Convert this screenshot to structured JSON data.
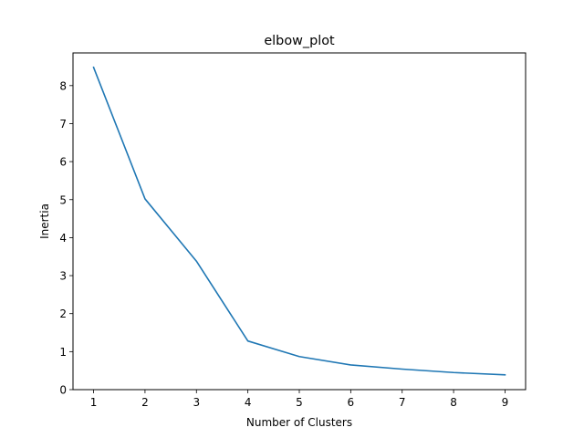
{
  "chart_data": {
    "type": "line",
    "title": "elbow_plot",
    "xlabel": "Number of Clusters",
    "ylabel": "Inertia",
    "x": [
      1,
      2,
      3,
      4,
      5,
      6,
      7,
      8,
      9
    ],
    "series": [
      {
        "values": [
          8.48,
          5.02,
          3.38,
          1.28,
          0.87,
          0.65,
          0.54,
          0.45,
          0.39
        ],
        "color": "#1f77b4"
      }
    ],
    "xlim": [
      0.6,
      9.4
    ],
    "ylim": [
      0,
      8.86
    ],
    "xticks": [
      1,
      2,
      3,
      4,
      5,
      6,
      7,
      8,
      9
    ],
    "yticks": [
      0,
      1,
      2,
      3,
      4,
      5,
      6,
      7,
      8
    ],
    "grid": false,
    "legend": "none"
  }
}
